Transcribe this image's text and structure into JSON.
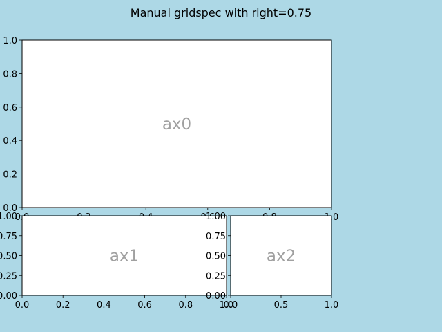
{
  "figure": {
    "title": "Manual gridspec with right=0.75",
    "background": "#add8e6"
  },
  "chart_data": [
    {
      "type": "subplot",
      "name": "ax0",
      "label": "ax0",
      "xlim": [
        0,
        1
      ],
      "ylim": [
        0,
        1
      ],
      "xticks": [
        "0.0",
        "0.2",
        "0.4",
        "0.6",
        "0.8",
        "1.0"
      ],
      "yticks": [
        "0.0",
        "0.2",
        "0.4",
        "0.6",
        "0.8",
        "1.0"
      ]
    },
    {
      "type": "subplot",
      "name": "ax1",
      "label": "ax1",
      "xlim": [
        0,
        1
      ],
      "ylim": [
        0,
        1
      ],
      "xticks": [
        "0.0",
        "0.2",
        "0.4",
        "0.6",
        "0.8",
        "1.0"
      ],
      "yticks": [
        "0.00",
        "0.25",
        "0.50",
        "0.75",
        "1.00"
      ]
    },
    {
      "type": "subplot",
      "name": "ax2",
      "label": "ax2",
      "xlim": [
        0,
        1
      ],
      "ylim": [
        0,
        1
      ],
      "xticks": [
        "0.0",
        "0.5",
        "1.0"
      ],
      "yticks": [
        "0.00",
        "0.25",
        "0.50",
        "0.75",
        "1.00"
      ]
    }
  ]
}
